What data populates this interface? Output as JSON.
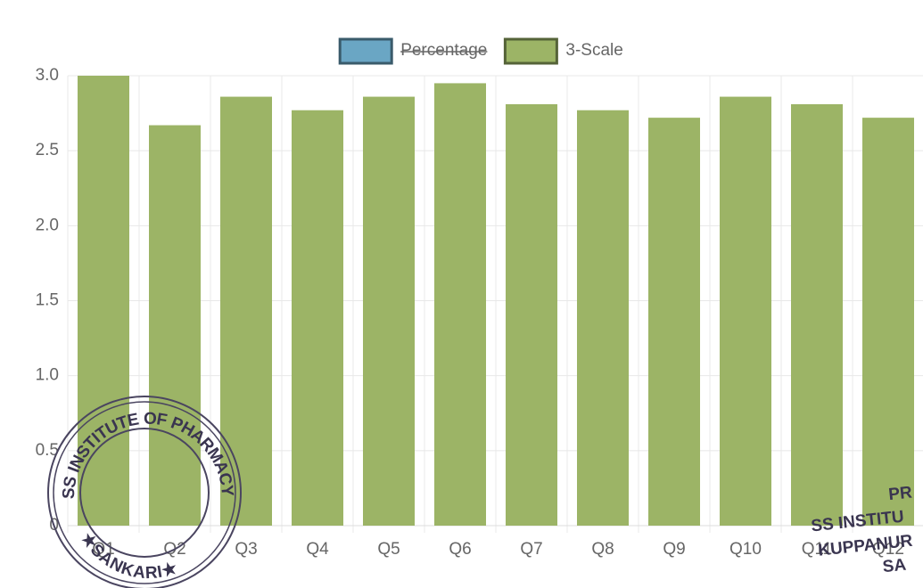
{
  "chart_data": {
    "type": "bar",
    "categories": [
      "Q1",
      "Q2",
      "Q3",
      "Q4",
      "Q5",
      "Q6",
      "Q7",
      "Q8",
      "Q9",
      "Q10",
      "Q11",
      "Q12"
    ],
    "series": [
      {
        "name": "Percentage",
        "color": "#6aa6c4",
        "hidden": true,
        "values": [
          null,
          null,
          null,
          null,
          null,
          null,
          null,
          null,
          null,
          null,
          null,
          null
        ]
      },
      {
        "name": "3-Scale",
        "color": "#9cb466",
        "values": [
          3.0,
          2.67,
          2.86,
          2.77,
          2.86,
          2.95,
          2.81,
          2.77,
          2.72,
          2.86,
          2.81,
          2.72
        ]
      }
    ],
    "ylim": [
      0,
      3.0
    ],
    "yticks": [
      0,
      0.5,
      {
        "value": 1.0,
        "label": "1.0"
      },
      1.5,
      {
        "value": 2.0,
        "label": "2.0"
      },
      2.5,
      {
        "value": 3.0,
        "label": "3.0"
      }
    ],
    "grid": true,
    "legend": "top",
    "annotations": [
      "SS INSTITUTE OF PHARMACY",
      "★SANKARI★",
      "PR",
      "SS INSTITU",
      "KUPPANUR",
      "SA"
    ]
  }
}
